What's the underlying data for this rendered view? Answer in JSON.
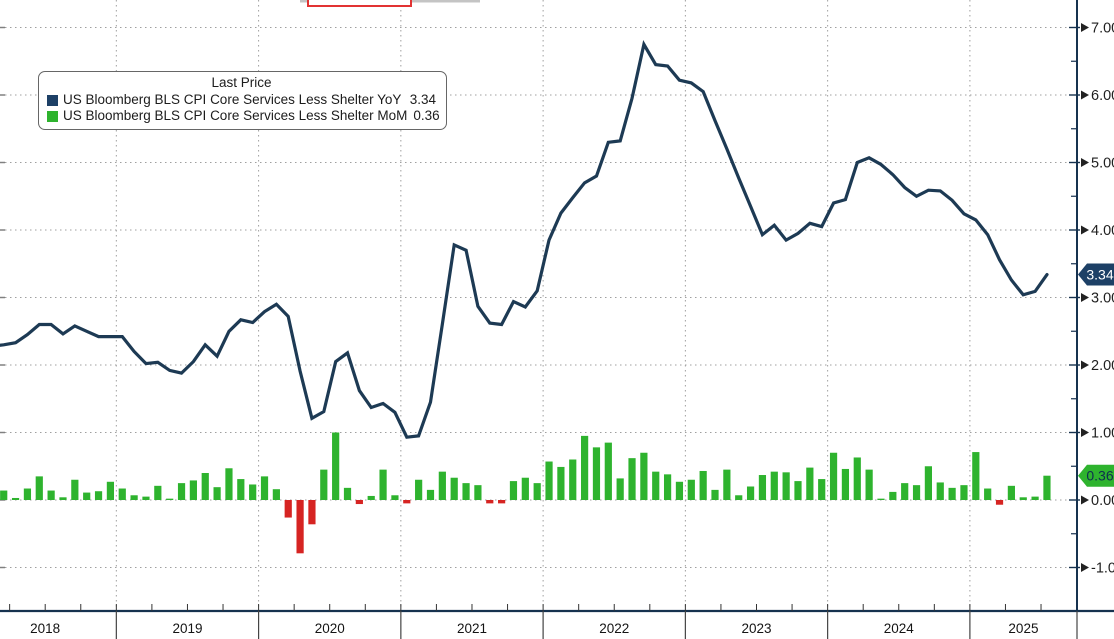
{
  "legend": {
    "title": "Last Price",
    "series": [
      {
        "label": "US Bloomberg BLS CPI Core Services Less Shelter YoY",
        "value": "3.34",
        "color": "#1d4066"
      },
      {
        "label": "US Bloomberg BLS CPI Core Services Less Shelter MoM",
        "value": "0.36",
        "color": "#2eb32e"
      }
    ]
  },
  "chart_data": {
    "type": "line+bar",
    "title": "US Bloomberg BLS CPI Core Services Less Shelter",
    "frequency": "monthly",
    "x_start": "2018-01",
    "x_end": "2025-07",
    "x_tick_labels": [
      "2018",
      "2019",
      "2020",
      "2021",
      "2022",
      "2023",
      "2024",
      "2025"
    ],
    "grid": "dotted",
    "legend_position": "top-left",
    "y_axis": {
      "side": "right",
      "ticks": [
        7,
        6,
        5,
        4,
        3,
        2,
        1,
        0,
        -1
      ],
      "tick_format": "0.00",
      "minor_tick_step": 0.5,
      "visible_range": [
        -1.6,
        7.4
      ]
    },
    "series": [
      {
        "name": "US Bloomberg BLS CPI Core Services Less Shelter YoY",
        "type": "line",
        "color": "#1d3a54",
        "last_price": 3.34,
        "badge_bg": "#1d4066",
        "badge_text_color": "#ffffff",
        "values": [
          1.9,
          2.28,
          2.3,
          2.33,
          2.45,
          2.6,
          2.6,
          2.46,
          2.58,
          2.5,
          2.42,
          2.42,
          2.42,
          2.2,
          2.02,
          2.04,
          1.92,
          1.88,
          2.05,
          2.3,
          2.13,
          2.5,
          2.67,
          2.63,
          2.79,
          2.9,
          2.72,
          1.91,
          1.21,
          1.31,
          2.05,
          2.18,
          1.62,
          1.37,
          1.43,
          1.3,
          0.93,
          0.95,
          1.45,
          2.6,
          3.78,
          3.7,
          2.87,
          2.62,
          2.6,
          2.94,
          2.86,
          3.1,
          3.85,
          4.25,
          4.48,
          4.7,
          4.8,
          5.3,
          5.32,
          5.95,
          6.75,
          6.45,
          6.43,
          6.22,
          6.18,
          6.05,
          5.62,
          5.2,
          4.77,
          4.35,
          3.93,
          4.07,
          3.85,
          3.95,
          4.1,
          4.05,
          4.4,
          4.45,
          5.0,
          5.07,
          4.97,
          4.82,
          4.63,
          4.5,
          4.59,
          4.58,
          4.44,
          4.24,
          4.15,
          3.93,
          3.56,
          3.26,
          3.04,
          3.09,
          3.34
        ]
      },
      {
        "name": "US Bloomberg BLS CPI Core Services Less Shelter MoM",
        "type": "bar",
        "color_positive": "#2eb32e",
        "color_negative": "#d62422",
        "last_price": 0.36,
        "badge_bg": "#2eb32e",
        "badge_text_color": "#0e2f4e",
        "values": [
          0.2,
          0.1,
          0.14,
          0.03,
          0.17,
          0.35,
          0.14,
          0.04,
          0.3,
          0.11,
          0.13,
          0.27,
          0.17,
          0.07,
          0.05,
          0.21,
          0.02,
          0.25,
          0.29,
          0.4,
          0.19,
          0.47,
          0.31,
          0.23,
          0.35,
          0.16,
          -0.26,
          -0.79,
          -0.36,
          0.45,
          1.0,
          0.18,
          -0.06,
          0.06,
          0.45,
          0.07,
          -0.05,
          0.3,
          0.15,
          0.42,
          0.33,
          0.25,
          0.22,
          -0.05,
          -0.05,
          0.28,
          0.33,
          0.25,
          0.57,
          0.49,
          0.6,
          0.95,
          0.78,
          0.85,
          0.32,
          0.62,
          0.7,
          0.42,
          0.38,
          0.27,
          0.3,
          0.43,
          0.15,
          0.45,
          0.07,
          0.2,
          0.37,
          0.42,
          0.41,
          0.28,
          0.48,
          0.31,
          0.7,
          0.46,
          0.63,
          0.45,
          0.02,
          0.12,
          0.25,
          0.22,
          0.5,
          0.26,
          0.18,
          0.22,
          0.71,
          0.17,
          -0.07,
          0.21,
          0.04,
          0.05,
          0.36
        ]
      }
    ]
  }
}
